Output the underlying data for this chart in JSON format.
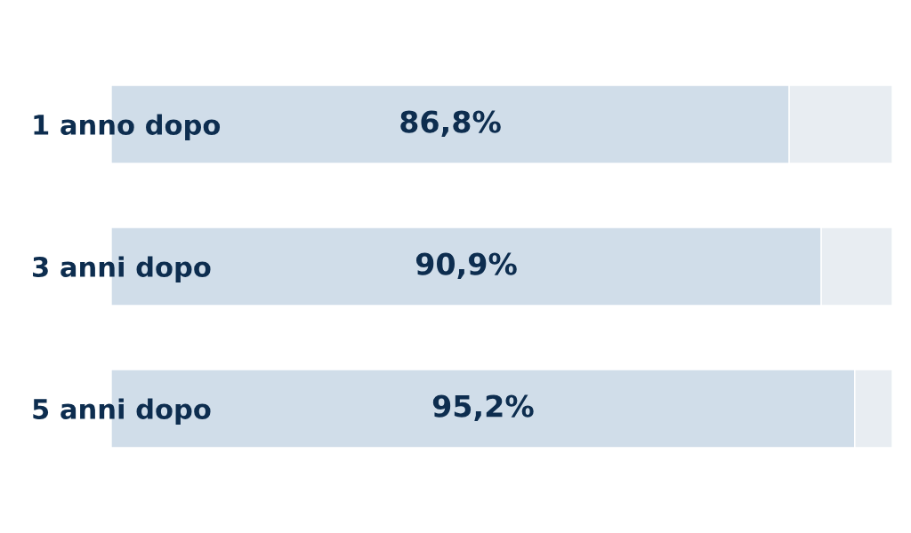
{
  "chart_data": {
    "type": "bar",
    "orientation": "horizontal",
    "stacked": true,
    "categories": [
      "1 anno dopo",
      "3 anni dopo",
      "5 anni dopo"
    ],
    "series": [
      {
        "color": "#d0dde9",
        "values": [
          86.8,
          90.9,
          95.2
        ],
        "value_labels": [
          "86,8%",
          "90,9%",
          "95,2%"
        ]
      },
      {
        "color": "#e8edf2",
        "values": [
          13.2,
          9.1,
          4.8
        ]
      }
    ],
    "xlim": [
      0,
      100
    ],
    "tick_labels": "y"
  }
}
